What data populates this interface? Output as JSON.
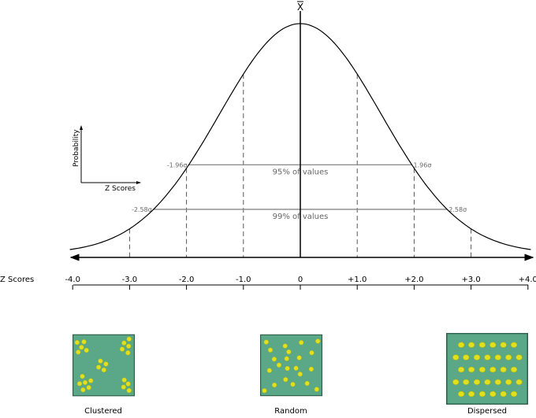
{
  "mean_label": "X",
  "z_axis_label": "Z Scores",
  "z_ticks": [
    "-4.0",
    "-3.0",
    "-2.0",
    "-1.0",
    "0",
    "+1.0",
    "+2.0",
    "+3.0",
    "+4.0"
  ],
  "z_values": [
    -4,
    -3,
    -2,
    -1,
    0,
    1,
    2,
    3,
    4
  ],
  "dashed_z": [
    -3,
    -2,
    -1,
    1,
    2,
    3
  ],
  "mini_axes": {
    "y_label": "Probability",
    "x_label": "Z Scores"
  },
  "intervals": [
    {
      "z": 1.96,
      "left_label": "-1.96σ",
      "right_label": "1.96σ",
      "text": "95% of values"
    },
    {
      "z": 2.58,
      "left_label": "-2.58σ",
      "right_label": "2.58σ",
      "text": "99% of values"
    }
  ],
  "patterns": [
    {
      "label": "Clustered"
    },
    {
      "label": "Random"
    },
    {
      "label": "Dispersed"
    }
  ],
  "colors": {
    "box": "#5aa887",
    "box_border": "#2f5f4a",
    "dot": "#e0e020",
    "dot_stroke": "#b8b800",
    "interval_line": "#888888",
    "interval_text": "#666666"
  }
}
